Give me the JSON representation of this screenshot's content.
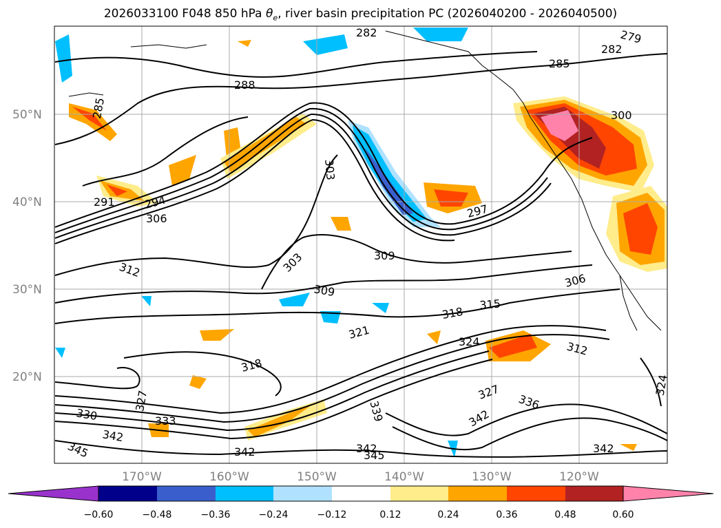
{
  "title_pre": "2026033100 F048 850 hPa ",
  "title_theta": "θ",
  "title_sub": "e",
  "title_post": ", river basin precipitation PC (2026040200 - 2026040500)",
  "lat_labels": [
    "50°N",
    "40°N",
    "30°N",
    "20°N"
  ],
  "lon_labels": [
    "170°W",
    "160°W",
    "150°W",
    "140°W",
    "130°W",
    "120°W"
  ],
  "colorbar": {
    "ticks": [
      "−0.60",
      "−0.48",
      "−0.36",
      "−0.24",
      "−0.12",
      "0.12",
      "0.24",
      "0.36",
      "0.48",
      "0.60"
    ],
    "colors": [
      "#9932cc",
      "#00008b",
      "#3a5fcd",
      "#00bfff",
      "#b0e2ff",
      "#ffffff",
      "#ffec8b",
      "#ffa500",
      "#ff4500",
      "#b22222",
      "#ff82ab"
    ]
  },
  "contour_labels": [
    "282",
    "279",
    "282",
    "285",
    "288",
    "285",
    "300",
    "303",
    "291",
    "294",
    "306",
    "297",
    "303",
    "309",
    "312",
    "309",
    "306",
    "315",
    "318",
    "321",
    "324",
    "312",
    "318",
    "327",
    "336",
    "324",
    "330",
    "327",
    "333",
    "342",
    "345",
    "339",
    "342",
    "342",
    "345",
    "342",
    "342"
  ]
}
